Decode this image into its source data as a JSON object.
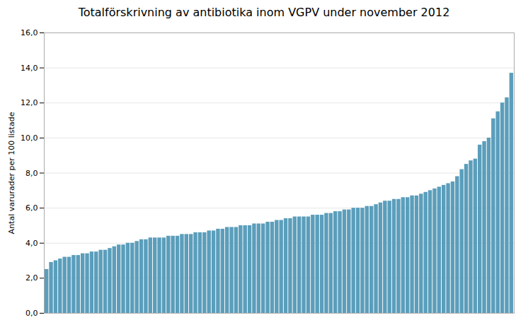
{
  "chart_data": {
    "type": "bar",
    "title": "Totalförskrivning av antibiotika inom VGPV under november 2012",
    "ylabel": "Antal varurader per 100 listade",
    "categories": [
      null,
      null,
      null,
      null,
      null,
      null,
      null,
      null,
      null,
      null,
      null,
      null,
      null,
      null,
      null,
      null,
      null,
      null,
      null,
      null,
      null,
      null,
      null,
      null,
      null,
      null,
      null,
      null,
      null,
      null,
      null,
      null,
      null,
      null,
      null,
      null,
      null,
      null,
      null,
      null,
      null,
      null,
      null,
      null,
      null,
      null,
      null,
      null,
      null,
      null,
      null,
      null,
      null,
      null,
      null,
      null,
      null,
      null,
      null,
      null,
      null,
      null,
      null,
      null,
      null,
      null,
      null,
      null,
      null,
      null,
      null,
      null,
      null,
      null,
      null,
      null,
      null,
      null,
      null,
      null,
      null,
      null,
      null,
      null,
      null,
      null,
      null,
      null,
      null,
      null,
      null,
      null,
      null,
      null,
      null,
      null,
      null,
      null,
      null,
      null,
      null,
      null,
      null,
      null
    ],
    "values": [
      2.5,
      2.9,
      3.0,
      3.1,
      3.2,
      3.2,
      3.3,
      3.3,
      3.4,
      3.4,
      3.5,
      3.5,
      3.6,
      3.6,
      3.7,
      3.8,
      3.9,
      3.9,
      4.0,
      4.0,
      4.1,
      4.2,
      4.2,
      4.3,
      4.3,
      4.3,
      4.3,
      4.4,
      4.4,
      4.4,
      4.5,
      4.5,
      4.5,
      4.6,
      4.6,
      4.6,
      4.7,
      4.7,
      4.8,
      4.8,
      4.9,
      4.9,
      4.9,
      5.0,
      5.0,
      5.0,
      5.1,
      5.1,
      5.1,
      5.2,
      5.2,
      5.3,
      5.3,
      5.4,
      5.4,
      5.5,
      5.5,
      5.5,
      5.5,
      5.6,
      5.6,
      5.6,
      5.7,
      5.7,
      5.8,
      5.8,
      5.9,
      5.9,
      6.0,
      6.0,
      6.0,
      6.1,
      6.1,
      6.2,
      6.3,
      6.4,
      6.4,
      6.5,
      6.5,
      6.6,
      6.6,
      6.7,
      6.7,
      6.8,
      6.9,
      7.0,
      7.1,
      7.2,
      7.3,
      7.4,
      7.5,
      7.8,
      8.2,
      8.5,
      8.7,
      8.8,
      9.6,
      9.8,
      10.0,
      11.1,
      11.5,
      12.0,
      12.3,
      13.7
    ],
    "color": "#5b9ebb",
    "ylim": [
      0,
      16.0
    ],
    "yticks": [
      {
        "value": 0.0,
        "label": "0,0"
      },
      {
        "value": 2.0,
        "label": "2,0"
      },
      {
        "value": 4.0,
        "label": "4,0"
      },
      {
        "value": 6.0,
        "label": "6,0"
      },
      {
        "value": 8.0,
        "label": "8,0"
      },
      {
        "value": 10.0,
        "label": "10,0"
      },
      {
        "value": 12.0,
        "label": "12,0"
      },
      {
        "value": 14.0,
        "label": "14,0"
      },
      {
        "value": 16.0,
        "label": "16,0"
      }
    ],
    "grid": true,
    "tick_labels": "y"
  }
}
